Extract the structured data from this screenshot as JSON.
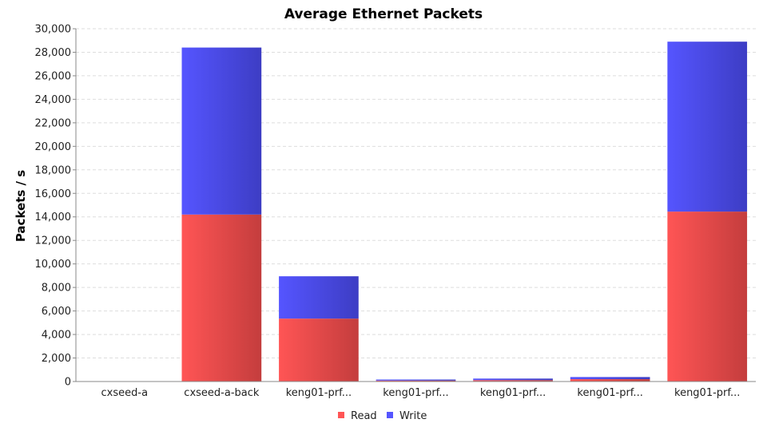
{
  "chart_data": {
    "type": "bar",
    "stacked": true,
    "title": "Average Ethernet Packets",
    "xlabel": "",
    "ylabel": "Packets / s",
    "ylim": [
      0,
      30000
    ],
    "yticks": [
      0,
      2000,
      4000,
      6000,
      8000,
      10000,
      12000,
      14000,
      16000,
      18000,
      20000,
      22000,
      24000,
      26000,
      28000,
      30000
    ],
    "ytick_labels": [
      "0",
      "2,000",
      "4,000",
      "6,000",
      "8,000",
      "10,000",
      "12,000",
      "14,000",
      "16,000",
      "18,000",
      "20,000",
      "22,000",
      "24,000",
      "26,000",
      "28,000",
      "30,000"
    ],
    "grid": true,
    "legend_position": "bottom",
    "categories": [
      "cxseed-a",
      "cxseed-a-back",
      "keng01-prf...",
      "keng01-prf...",
      "keng01-prf...",
      "keng01-prf...",
      "keng01-prf..."
    ],
    "series": [
      {
        "name": "Read",
        "color": "#ff5555",
        "values": [
          0,
          14200,
          5350,
          80,
          120,
          200,
          14450
        ]
      },
      {
        "name": "Write",
        "color": "#5555ff",
        "values": [
          0,
          14200,
          3600,
          90,
          130,
          180,
          14450
        ]
      }
    ]
  }
}
